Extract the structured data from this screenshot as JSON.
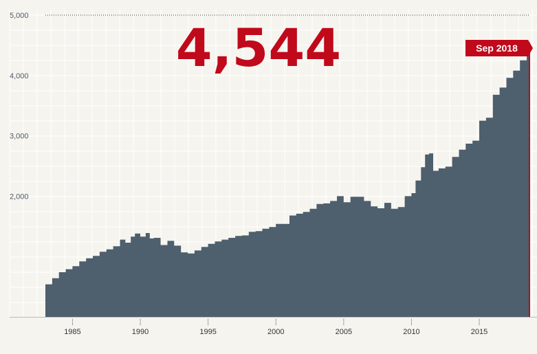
{
  "chart_data": {
    "type": "area",
    "title": "",
    "xlabel": "",
    "ylabel": "",
    "headline_value": "4,544",
    "latest_label": "Sep 2018",
    "ylim": [
      0,
      5000
    ],
    "xlim": [
      1980.75,
      2018.75
    ],
    "y_ticks": [
      2000,
      3000,
      4000,
      5000
    ],
    "y_tick_labels": [
      "2,000",
      "3,000",
      "4,000",
      "5,000"
    ],
    "x_ticks": [
      1985,
      1990,
      1995,
      2000,
      2005,
      2010,
      2015
    ],
    "x_tick_labels": [
      "1985",
      "1990",
      "1995",
      "2000",
      "2005",
      "2010",
      "2015"
    ],
    "grid": true,
    "colors": {
      "area": "#4e5f6d",
      "accent": "#c0091b",
      "background": "#f6f4ef"
    },
    "series": [
      {
        "x": [
          1983.0,
          1983.5,
          1984.0,
          1984.5,
          1985.0,
          1985.5,
          1986.0,
          1986.5,
          1987.0,
          1987.5,
          1988.0,
          1988.5,
          1988.9,
          1989.3,
          1989.6,
          1990.0,
          1990.4,
          1990.7,
          1991.0,
          1991.5,
          1992.0,
          1992.5,
          1993.0,
          1993.5,
          1994.0,
          1994.5,
          1995.0,
          1995.5,
          1996.0,
          1996.5,
          1997.0,
          1997.5,
          1998.0,
          1998.5,
          1999.0,
          1999.5,
          2000.0,
          2000.5,
          2001.0,
          2001.5,
          2002.0,
          2002.5,
          2003.0,
          2003.5,
          2004.0,
          2004.5,
          2005.0,
          2005.5,
          2006.0,
          2006.5,
          2007.0,
          2007.5,
          2008.0,
          2008.5,
          2009.0,
          2009.5,
          2010.0,
          2010.3,
          2010.7,
          2011.0,
          2011.3,
          2011.6,
          2012.0,
          2012.5,
          2013.0,
          2013.5,
          2014.0,
          2014.5,
          2015.0,
          2015.5,
          2016.0,
          2016.5,
          2017.0,
          2017.5,
          2018.0,
          2018.5,
          2018.7
        ],
        "y": [
          540,
          640,
          740,
          790,
          840,
          920,
          970,
          1010,
          1080,
          1120,
          1170,
          1280,
          1230,
          1330,
          1380,
          1330,
          1390,
          1300,
          1310,
          1190,
          1260,
          1180,
          1070,
          1050,
          1100,
          1160,
          1210,
          1250,
          1280,
          1310,
          1340,
          1350,
          1410,
          1420,
          1460,
          1490,
          1540,
          1540,
          1680,
          1710,
          1740,
          1790,
          1870,
          1880,
          1920,
          2000,
          1900,
          1990,
          1990,
          1920,
          1830,
          1800,
          1890,
          1790,
          1820,
          2000,
          2050,
          2260,
          2480,
          2690,
          2710,
          2420,
          2460,
          2490,
          2650,
          2770,
          2870,
          2920,
          3250,
          3300,
          3680,
          3800,
          3960,
          4080,
          4250,
          4470,
          4544
        ]
      }
    ]
  }
}
